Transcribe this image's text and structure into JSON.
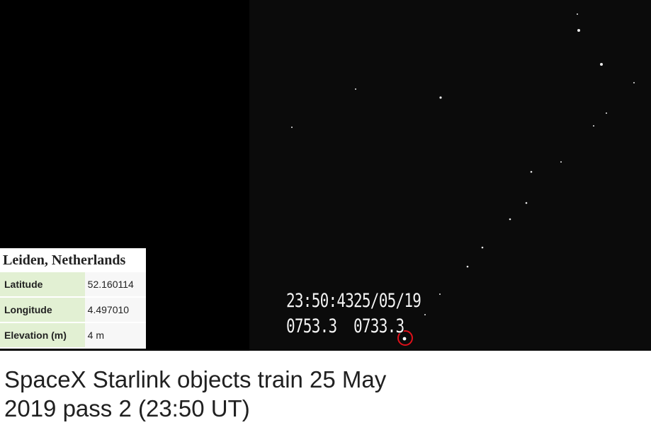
{
  "image": {
    "background_left": "#000000",
    "sky_color": "#0b0b0b"
  },
  "osd": {
    "time": "23:50:43",
    "date": "25/05/19",
    "left_value": "0753.3",
    "right_value": "0733.3"
  },
  "location": {
    "title": "Leiden, Netherlands",
    "rows": [
      {
        "label": "Latitude",
        "value": "52.160114"
      },
      {
        "label": "Longitude",
        "value": "4.497010"
      },
      {
        "label": "Elevation (m)",
        "value": "4 m"
      }
    ]
  },
  "caption": {
    "line1": "SpaceX Starlink objects train 25 May",
    "line2": "2019 pass 2 (23:50 UT)"
  },
  "colors": {
    "highlight_circle": "#e0101a",
    "table_label_bg": "#e2f0d3"
  }
}
